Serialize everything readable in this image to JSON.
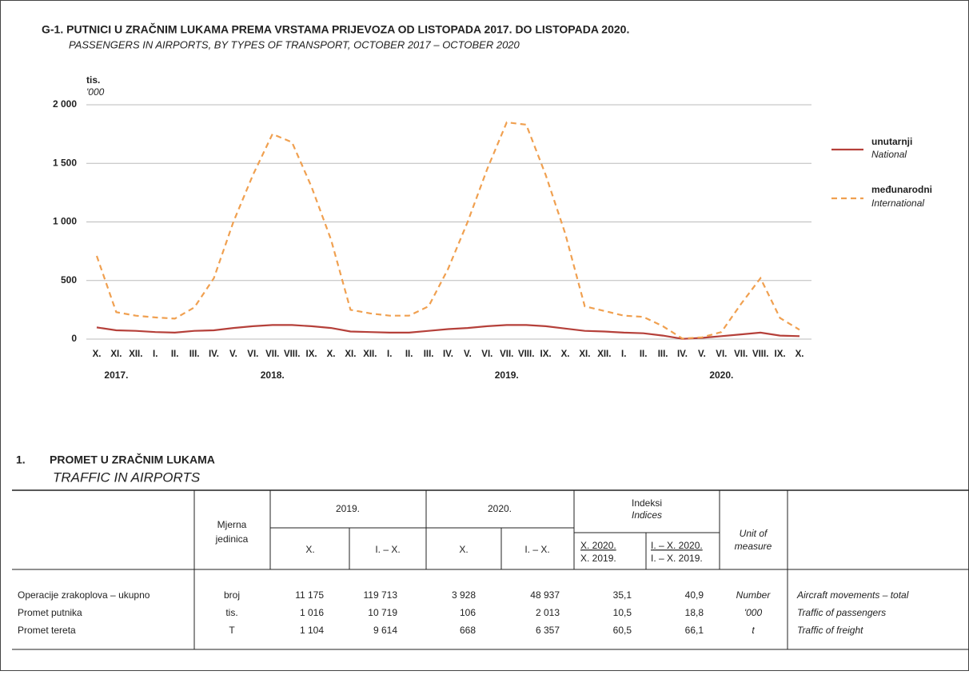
{
  "chart_data": {
    "type": "line",
    "title": "G-1. PUTNICI U ZRAČNIM LUKAMA PREMA VRSTAMA PRIJEVOZA OD LISTOPADA 2017. DO LISTOPADA 2020.",
    "subtitle": "PASSENGERS IN AIRPORTS, BY TYPES OF TRANSPORT, OCTOBER 2017 – OCTOBER 2020",
    "y_unit": "tis.",
    "y_unit_en": "'000",
    "categories": [
      "X.",
      "XI.",
      "XII.",
      "I.",
      "II.",
      "III.",
      "IV.",
      "V.",
      "VI.",
      "VII.",
      "VIII.",
      "IX.",
      "X.",
      "XI.",
      "XII.",
      "I.",
      "II.",
      "III.",
      "IV.",
      "V.",
      "VI.",
      "VII.",
      "VIII.",
      "IX.",
      "X.",
      "XI.",
      "XII.",
      "I.",
      "II.",
      "III.",
      "IV.",
      "V.",
      "VI.",
      "VII.",
      "VIII.",
      "IX.",
      "X."
    ],
    "year_labels": [
      null,
      "2017.",
      null,
      null,
      null,
      null,
      null,
      null,
      null,
      "2018.",
      null,
      null,
      null,
      null,
      null,
      null,
      null,
      null,
      null,
      null,
      null,
      "2019.",
      null,
      null,
      null,
      null,
      null,
      null,
      null,
      null,
      null,
      null,
      "2020.",
      null,
      null,
      null,
      null
    ],
    "series": [
      {
        "name": "unutarnji",
        "name_en": "National",
        "color": "#b5403a",
        "dashed": false,
        "values": [
          100,
          75,
          70,
          60,
          55,
          70,
          75,
          95,
          110,
          120,
          120,
          110,
          95,
          65,
          60,
          55,
          55,
          70,
          85,
          95,
          110,
          120,
          120,
          110,
          90,
          70,
          65,
          55,
          50,
          30,
          2,
          10,
          25,
          40,
          55,
          30,
          25
        ]
      },
      {
        "name": "međunarodni",
        "name_en": "International",
        "color": "#f0a050",
        "dashed": true,
        "values": [
          710,
          230,
          200,
          185,
          175,
          270,
          520,
          1000,
          1400,
          1750,
          1680,
          1300,
          850,
          250,
          220,
          200,
          200,
          280,
          600,
          1000,
          1450,
          1850,
          1830,
          1400,
          900,
          280,
          240,
          200,
          190,
          110,
          5,
          15,
          60,
          300,
          520,
          180,
          80
        ]
      }
    ],
    "ylim": [
      0,
      2000
    ],
    "yticks": [
      0,
      500,
      {
        "value": 1000,
        "label": "1 000"
      },
      {
        "value": 1500,
        "label": "1 500"
      },
      {
        "value": 2000,
        "label": "2 000"
      }
    ],
    "grid": true,
    "legend": "right"
  },
  "table": {
    "number": "1.",
    "title": "PROMET U ZRAČNIM LUKAMA",
    "title_en": "TRAFFIC IN AIRPORTS",
    "header": {
      "unit": [
        "Mjerna",
        "jedinica"
      ],
      "year1": "2019.",
      "year2": "2020.",
      "indices": "Indeksi",
      "indices_en": "Indices",
      "unit_en": [
        "Unit of",
        "measure"
      ],
      "month": "X.",
      "period": "I. – X.",
      "index1": [
        "X. 2020.",
        "X. 2019."
      ],
      "index2": [
        "I. – X. 2020.",
        "I. – X. 2019."
      ]
    },
    "rows": [
      [
        "Operacije zrakoplova – ukupno",
        "broj",
        "11 175",
        "119 713",
        "3 928",
        "48 937",
        "35,1",
        "40,9",
        "Number",
        "Aircraft movements – total"
      ],
      [
        "Promet putnika",
        "tis.",
        "1 016",
        "10 719",
        "106",
        "2 013",
        "10,5",
        "18,8",
        "'000",
        "Traffic of passengers"
      ],
      [
        "Promet tereta",
        "T",
        "1 104",
        "9 614",
        "668",
        "6 357",
        "60,5",
        "66,1",
        "t",
        "Traffic of freight"
      ]
    ]
  }
}
